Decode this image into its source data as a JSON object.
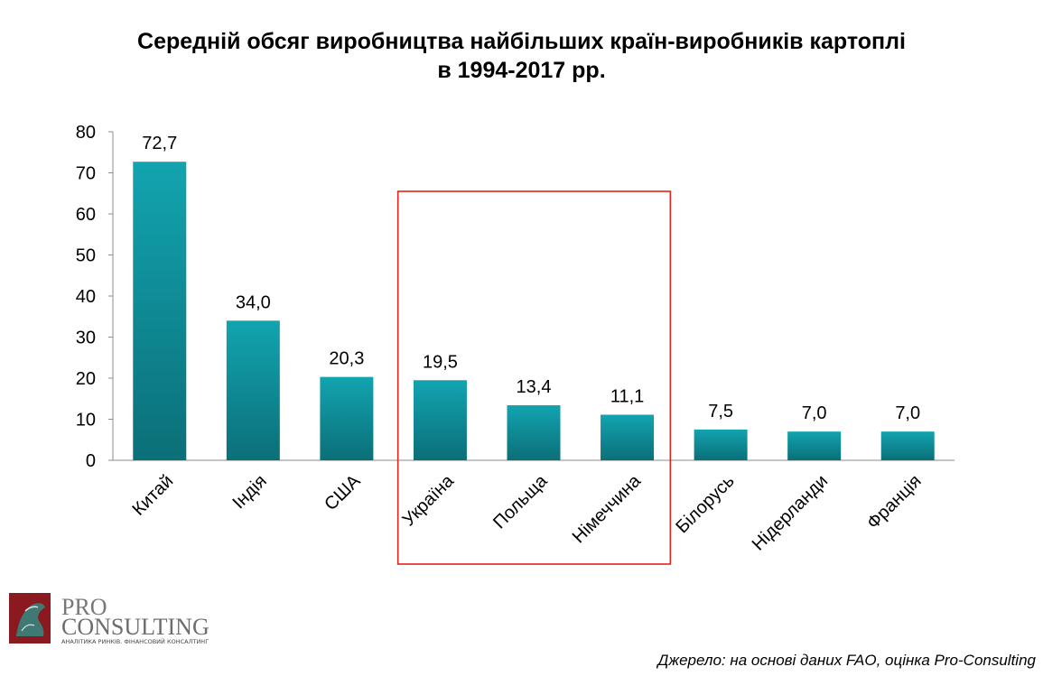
{
  "title": {
    "line1": "Середній обсяг виробництва найбільших країн-виробників картоплі",
    "line2": "в 1994-2017 рр."
  },
  "chart_data": {
    "type": "bar",
    "title": "Середній обсяг виробництва найбільших країн-виробників картоплі в 1994-2017 рр.",
    "categories": [
      "Китай",
      "Індія",
      "США",
      "Україна",
      "Польща",
      "Німеччина",
      "Білорусь",
      "Нідерланди",
      "Франція"
    ],
    "values": [
      72.7,
      34.0,
      20.3,
      19.5,
      13.4,
      11.1,
      7.5,
      7.0,
      7.0
    ],
    "value_labels": [
      "72,7",
      "34,0",
      "20,3",
      "19,5",
      "13,4",
      "11,1",
      "7,5",
      "7,0",
      "7,0"
    ],
    "ylim": [
      0,
      80
    ],
    "yticks": [
      "0",
      "10",
      "20",
      "30",
      "40",
      "50",
      "60",
      "70",
      "80"
    ],
    "xlabel": "",
    "ylabel": "",
    "grid": false,
    "highlight": {
      "from": "Україна",
      "to": "Німеччина",
      "color": "#e0251b"
    },
    "bar_color_top": "#12a4b0",
    "bar_color_bottom": "#0b6f78"
  },
  "logo": {
    "line1": "PRO",
    "line2": "CONSULTING",
    "tagline": "АНАЛІТИКА РИНКІВ. ФІНАНСОВИЙ КОНСАЛТИНГ"
  },
  "source": "Джерело: на основі даних FAO, оцінка Pro-Consulting"
}
